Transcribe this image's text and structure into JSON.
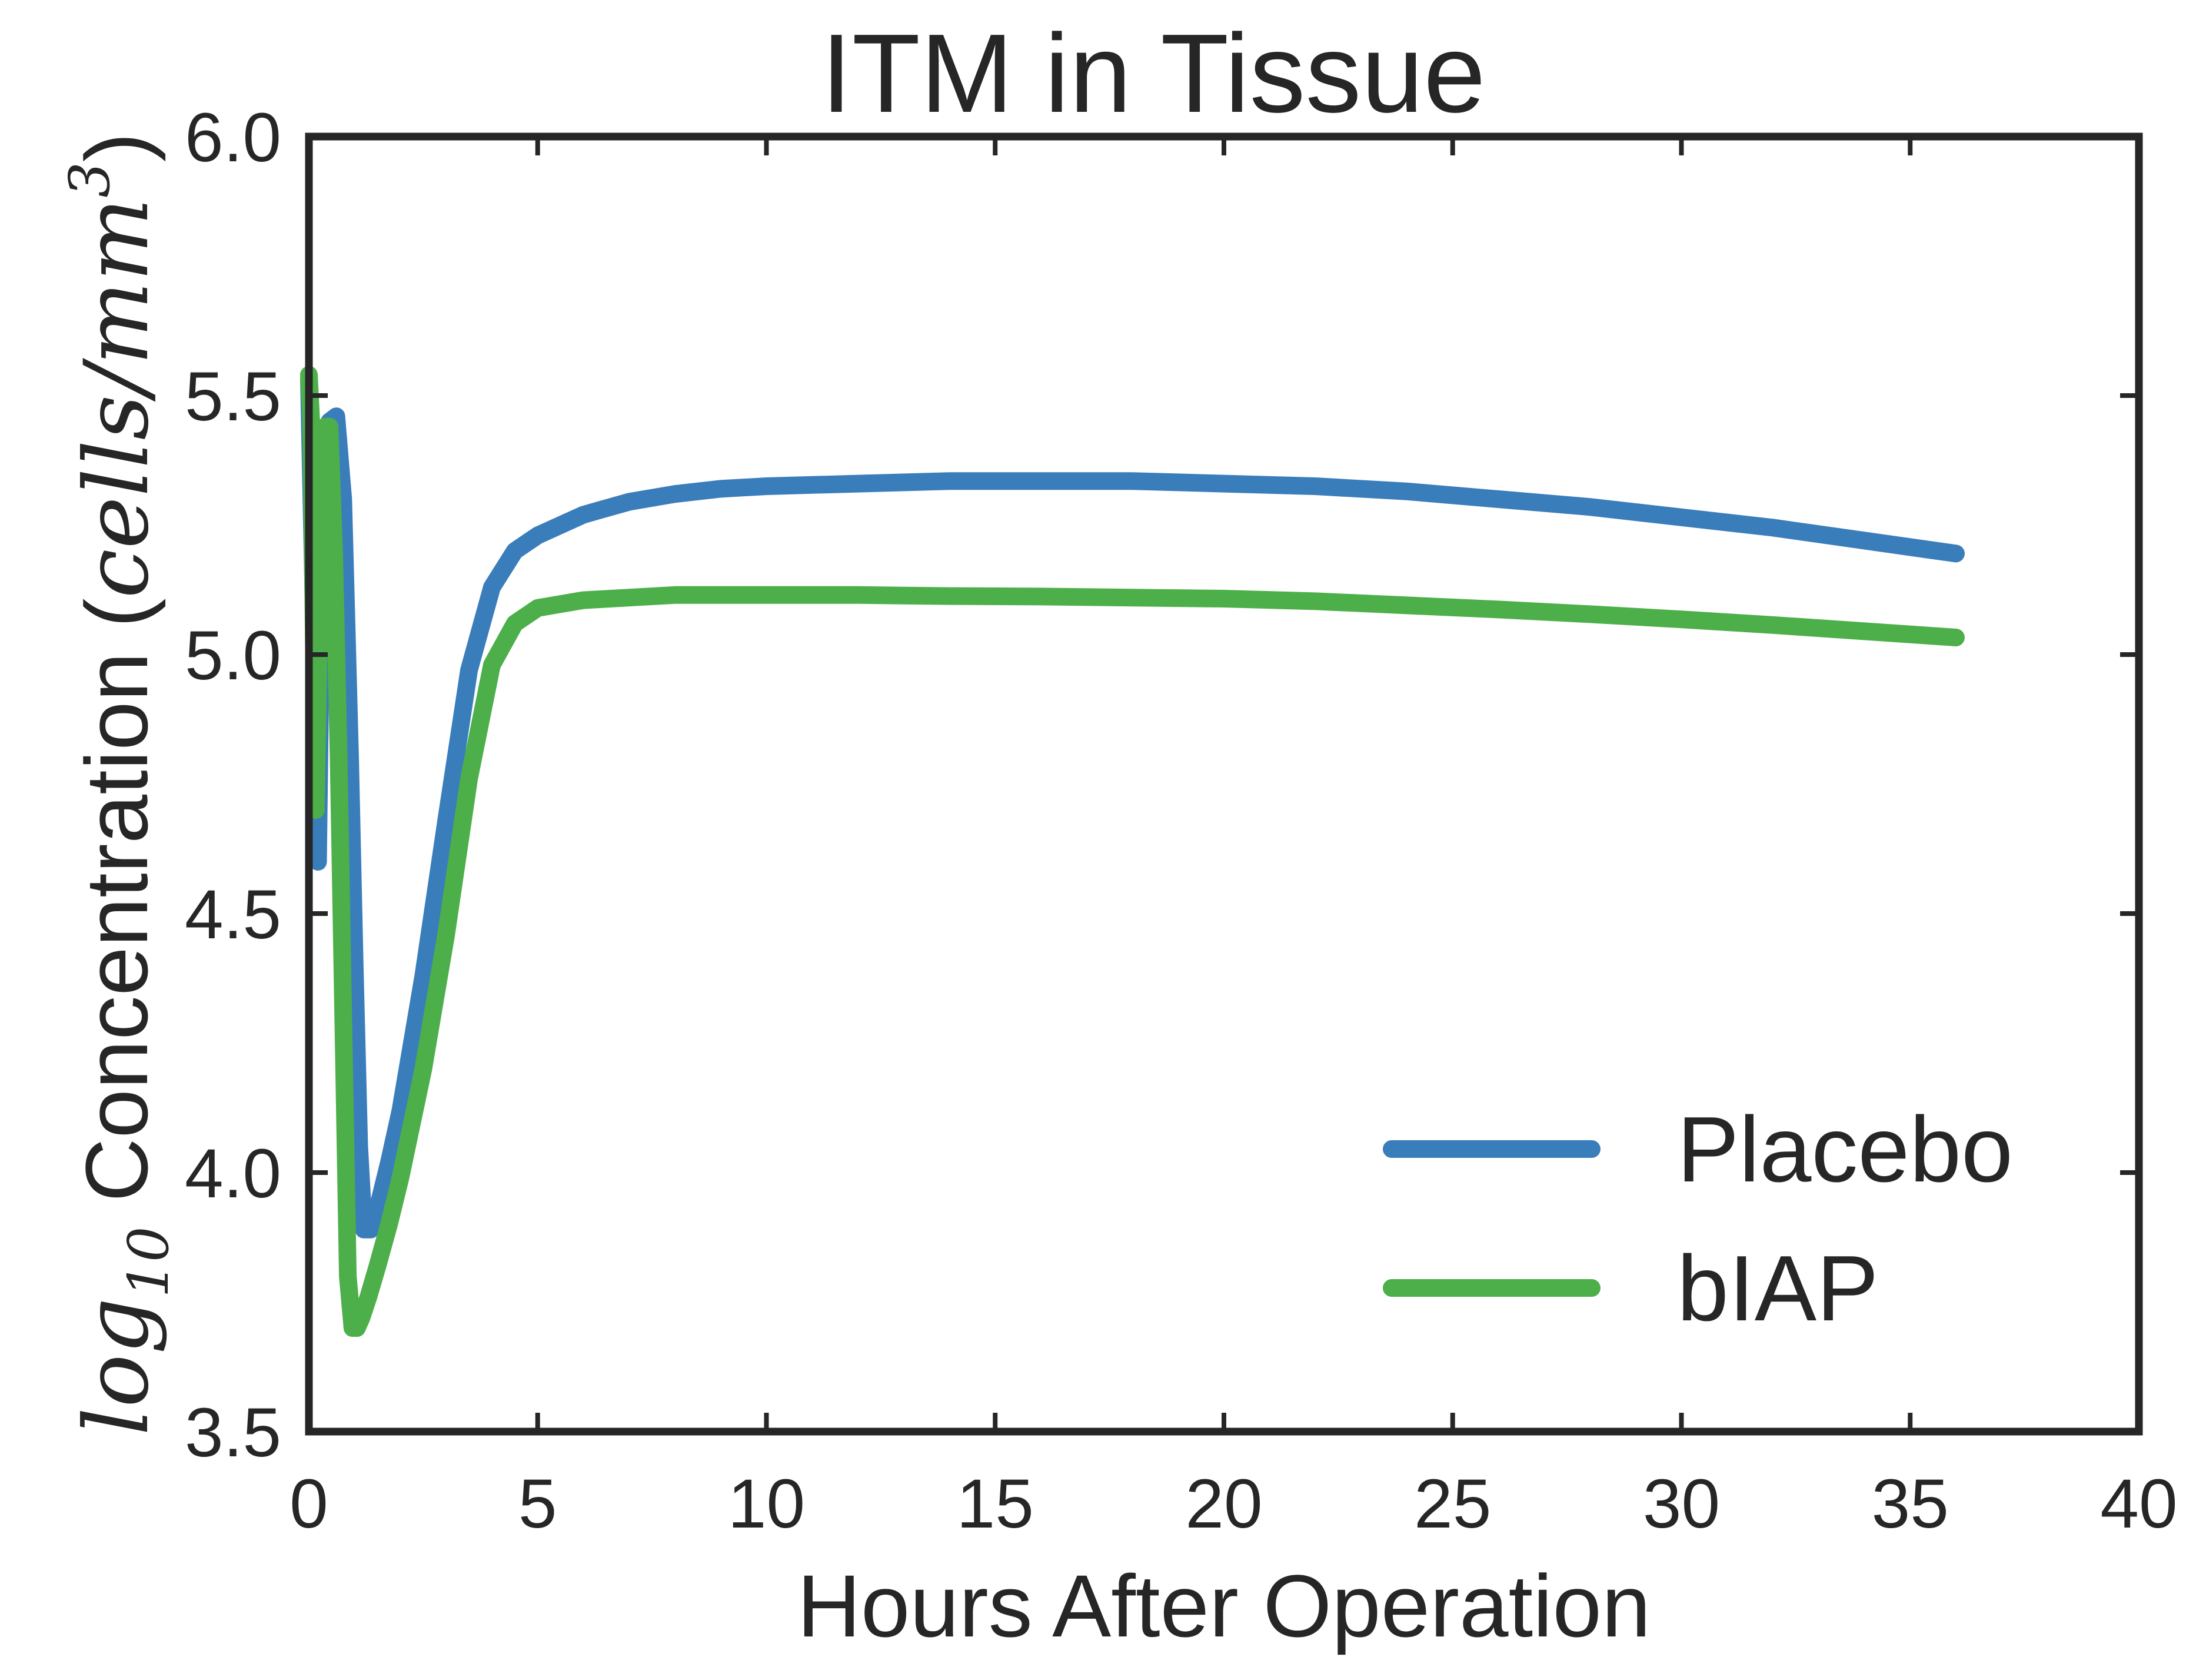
{
  "chart_data": {
    "type": "line",
    "title": "ITM in Tissue",
    "xlabel": "Hours After Operation",
    "ylabel": {
      "log_part": "log",
      "subscript": "10",
      "main": " Concentration (",
      "unit": "cells/mm",
      "superscript": "3",
      "close": ")"
    },
    "xlim": [
      0,
      40
    ],
    "ylim": [
      3.5,
      6.0
    ],
    "xticks": [
      "0",
      "5",
      "10",
      "15",
      "20",
      "25",
      "30",
      "35",
      "40"
    ],
    "yticks": [
      "3.5",
      "4.0",
      "4.5",
      "5.0",
      "5.5",
      "6.0"
    ],
    "grid": false,
    "legend_position": "lower-right",
    "series": [
      {
        "name": "Placebo",
        "color": "#3a7dbb",
        "x": [
          0,
          0.1,
          0.2,
          0.3,
          0.45,
          0.6,
          0.75,
          0.9,
          1.0,
          1.1,
          1.2,
          1.35,
          1.5,
          1.75,
          2.0,
          2.5,
          3.0,
          3.5,
          4.0,
          4.5,
          5.0,
          6.0,
          7.0,
          8.0,
          9.0,
          10,
          12,
          14,
          16,
          18,
          20,
          22,
          24,
          26,
          28,
          30,
          32,
          34,
          36
        ],
        "y": [
          5.53,
          5.1,
          4.6,
          5.3,
          5.45,
          5.46,
          5.3,
          4.8,
          4.4,
          4.05,
          3.89,
          3.89,
          3.93,
          4.02,
          4.12,
          4.38,
          4.68,
          4.97,
          5.13,
          5.2,
          5.23,
          5.27,
          5.295,
          5.31,
          5.32,
          5.325,
          5.33,
          5.335,
          5.335,
          5.335,
          5.33,
          5.325,
          5.315,
          5.3,
          5.285,
          5.265,
          5.245,
          5.22,
          5.195
        ]
      },
      {
        "name": "bIAP",
        "color": "#4daf4a",
        "x": [
          0,
          0.05,
          0.15,
          0.25,
          0.35,
          0.45,
          0.55,
          0.65,
          0.75,
          0.85,
          0.95,
          1.05,
          1.15,
          1.3,
          1.5,
          1.75,
          2.0,
          2.5,
          3.0,
          3.5,
          4.0,
          4.5,
          5.0,
          6.0,
          7.0,
          8.0,
          9.0,
          10,
          12,
          14,
          16,
          18,
          20,
          22,
          24,
          26,
          28,
          30,
          32,
          34,
          36
        ],
        "y": [
          5.54,
          5.45,
          4.7,
          5.2,
          5.44,
          5.44,
          5.2,
          4.8,
          4.3,
          3.8,
          3.7,
          3.7,
          3.72,
          3.76,
          3.82,
          3.9,
          3.99,
          4.2,
          4.46,
          4.76,
          4.98,
          5.06,
          5.09,
          5.105,
          5.11,
          5.115,
          5.115,
          5.115,
          5.115,
          5.113,
          5.112,
          5.11,
          5.108,
          5.103,
          5.095,
          5.087,
          5.078,
          5.068,
          5.057,
          5.045,
          5.033
        ]
      }
    ]
  }
}
